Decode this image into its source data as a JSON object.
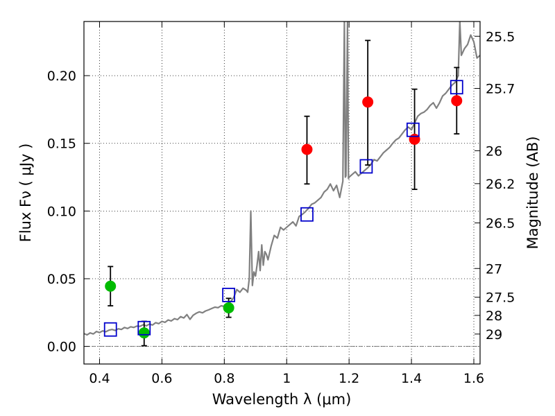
{
  "chart_data": {
    "type": "scatter",
    "title": "",
    "xlabel": "Wavelength  λ (μm)",
    "ylabel": "Flux  Fν  ( μJy )",
    "y2label": "Magnitude (AB)",
    "xlim": [
      0.35,
      1.62
    ],
    "ylim": [
      -0.013,
      0.24
    ],
    "grid": true,
    "legend": "none",
    "x_ticks": [
      {
        "value": 0.4,
        "label": "0.4"
      },
      {
        "value": 0.6,
        "label": "0.6"
      },
      {
        "value": 0.8,
        "label": "0.8"
      },
      {
        "value": 1.0,
        "label": "1"
      },
      {
        "value": 1.2,
        "label": "1.2"
      },
      {
        "value": 1.4,
        "label": "1.4"
      },
      {
        "value": 1.6,
        "label": "1.6"
      }
    ],
    "y_ticks": [
      {
        "value": 0.0,
        "label": "0.00"
      },
      {
        "value": 0.05,
        "label": "0.05"
      },
      {
        "value": 0.1,
        "label": "0.10"
      },
      {
        "value": 0.15,
        "label": "0.15"
      },
      {
        "value": 0.2,
        "label": "0.20"
      }
    ],
    "mag_ticks": [
      {
        "value": 25.5,
        "label": "25.5"
      },
      {
        "value": 25.7,
        "label": "25.7"
      },
      {
        "value": 26.0,
        "label": "26"
      },
      {
        "value": 26.2,
        "label": "26.2"
      },
      {
        "value": 26.5,
        "label": "26.5"
      },
      {
        "value": 27.0,
        "label": "27"
      },
      {
        "value": 27.5,
        "label": "27.5"
      },
      {
        "value": 28.0,
        "label": "28"
      },
      {
        "value": 29.0,
        "label": "29"
      }
    ],
    "model_spectrum": {
      "color": "#808080",
      "points": [
        [
          0.35,
          0.0095
        ],
        [
          0.36,
          0.0085
        ],
        [
          0.37,
          0.01
        ],
        [
          0.38,
          0.0092
        ],
        [
          0.39,
          0.011
        ],
        [
          0.4,
          0.0102
        ],
        [
          0.41,
          0.0115
        ],
        [
          0.42,
          0.0108
        ],
        [
          0.43,
          0.012
        ],
        [
          0.44,
          0.0125
        ],
        [
          0.45,
          0.0118
        ],
        [
          0.46,
          0.013
        ],
        [
          0.47,
          0.0125
        ],
        [
          0.48,
          0.014
        ],
        [
          0.49,
          0.0132
        ],
        [
          0.5,
          0.0145
        ],
        [
          0.51,
          0.014
        ],
        [
          0.52,
          0.015
        ],
        [
          0.53,
          0.0148
        ],
        [
          0.54,
          0.016
        ],
        [
          0.55,
          0.0152
        ],
        [
          0.56,
          0.0165
        ],
        [
          0.57,
          0.0158
        ],
        [
          0.58,
          0.0175
        ],
        [
          0.59,
          0.0168
        ],
        [
          0.6,
          0.0185
        ],
        [
          0.61,
          0.0178
        ],
        [
          0.62,
          0.0195
        ],
        [
          0.63,
          0.0188
        ],
        [
          0.64,
          0.0205
        ],
        [
          0.65,
          0.0198
        ],
        [
          0.66,
          0.022
        ],
        [
          0.67,
          0.021
        ],
        [
          0.68,
          0.0235
        ],
        [
          0.69,
          0.02
        ],
        [
          0.7,
          0.023
        ],
        [
          0.71,
          0.0245
        ],
        [
          0.72,
          0.0255
        ],
        [
          0.73,
          0.0248
        ],
        [
          0.74,
          0.0262
        ],
        [
          0.75,
          0.027
        ],
        [
          0.76,
          0.028
        ],
        [
          0.77,
          0.029
        ],
        [
          0.78,
          0.0286
        ],
        [
          0.79,
          0.03
        ],
        [
          0.8,
          0.0295
        ],
        [
          0.81,
          0.031
        ],
        [
          0.82,
          0.033
        ],
        [
          0.83,
          0.036
        ],
        [
          0.84,
          0.042
        ],
        [
          0.85,
          0.04
        ],
        [
          0.86,
          0.043
        ],
        [
          0.87,
          0.0415
        ],
        [
          0.875,
          0.04
        ],
        [
          0.88,
          0.05
        ],
        [
          0.885,
          0.1
        ],
        [
          0.89,
          0.045
        ],
        [
          0.895,
          0.055
        ],
        [
          0.9,
          0.052
        ],
        [
          0.905,
          0.06
        ],
        [
          0.91,
          0.07
        ],
        [
          0.915,
          0.056
        ],
        [
          0.92,
          0.075
        ],
        [
          0.925,
          0.06
        ],
        [
          0.93,
          0.07
        ],
        [
          0.935,
          0.068
        ],
        [
          0.94,
          0.064
        ],
        [
          0.95,
          0.074
        ],
        [
          0.96,
          0.082
        ],
        [
          0.97,
          0.08
        ],
        [
          0.98,
          0.088
        ],
        [
          0.99,
          0.086
        ],
        [
          1.0,
          0.088
        ],
        [
          1.01,
          0.09
        ],
        [
          1.02,
          0.092
        ],
        [
          1.03,
          0.089
        ],
        [
          1.04,
          0.096
        ],
        [
          1.05,
          0.0975
        ],
        [
          1.06,
          0.0995
        ],
        [
          1.07,
          0.102
        ],
        [
          1.08,
          0.105
        ],
        [
          1.09,
          0.106
        ],
        [
          1.1,
          0.108
        ],
        [
          1.11,
          0.11
        ],
        [
          1.12,
          0.114
        ],
        [
          1.13,
          0.116
        ],
        [
          1.14,
          0.12
        ],
        [
          1.15,
          0.115
        ],
        [
          1.16,
          0.119
        ],
        [
          1.17,
          0.11
        ],
        [
          1.18,
          0.122
        ],
        [
          1.185,
          0.24
        ],
        [
          1.188,
          0.125
        ],
        [
          1.19,
          0.126
        ],
        [
          1.195,
          0.24
        ],
        [
          1.198,
          0.124
        ],
        [
          1.2,
          0.125
        ],
        [
          1.21,
          0.127
        ],
        [
          1.22,
          0.129
        ],
        [
          1.23,
          0.126
        ],
        [
          1.24,
          0.128
        ],
        [
          1.25,
          0.13
        ],
        [
          1.26,
          0.132
        ],
        [
          1.27,
          0.1345
        ],
        [
          1.28,
          0.138
        ],
        [
          1.29,
          0.137
        ],
        [
          1.3,
          0.14
        ],
        [
          1.31,
          0.143
        ],
        [
          1.32,
          0.145
        ],
        [
          1.33,
          0.147
        ],
        [
          1.34,
          0.15
        ],
        [
          1.35,
          0.1525
        ],
        [
          1.36,
          0.154
        ],
        [
          1.37,
          0.157
        ],
        [
          1.38,
          0.16
        ],
        [
          1.39,
          0.162
        ],
        [
          1.4,
          0.16
        ],
        [
          1.41,
          0.165
        ],
        [
          1.42,
          0.17
        ],
        [
          1.43,
          0.172
        ],
        [
          1.44,
          0.173
        ],
        [
          1.45,
          0.175
        ],
        [
          1.46,
          0.178
        ],
        [
          1.47,
          0.18
        ],
        [
          1.48,
          0.176
        ],
        [
          1.49,
          0.18
        ],
        [
          1.5,
          0.185
        ],
        [
          1.51,
          0.187
        ],
        [
          1.52,
          0.19
        ],
        [
          1.53,
          0.193
        ],
        [
          1.54,
          0.195
        ],
        [
          1.55,
          0.2
        ],
        [
          1.555,
          0.24
        ],
        [
          1.56,
          0.215
        ],
        [
          1.57,
          0.22
        ],
        [
          1.58,
          0.223
        ],
        [
          1.59,
          0.23
        ],
        [
          1.6,
          0.225
        ],
        [
          1.61,
          0.213
        ],
        [
          1.62,
          0.215
        ]
      ]
    },
    "series": [
      {
        "kind": "detections_optical",
        "color": "#00bb00",
        "points": [
          {
            "x": 0.435,
            "y": 0.0445,
            "yerr_low": 0.03,
            "yerr_high": 0.059
          },
          {
            "x": 0.543,
            "y": 0.01,
            "yerr_low": 0.0005,
            "yerr_high": 0.0185
          },
          {
            "x": 0.814,
            "y": 0.0285,
            "yerr_low": 0.0215,
            "yerr_high": 0.0355
          }
        ]
      },
      {
        "kind": "detections_nir",
        "color": "#ff0000",
        "points": [
          {
            "x": 1.065,
            "y": 0.1455,
            "yerr_low": 0.12,
            "yerr_high": 0.17
          },
          {
            "x": 1.26,
            "y": 0.1805,
            "yerr_low": 0.134,
            "yerr_high": 0.226
          },
          {
            "x": 1.41,
            "y": 0.153,
            "yerr_low": 0.116,
            "yerr_high": 0.19
          },
          {
            "x": 1.545,
            "y": 0.1815,
            "yerr_low": 0.157,
            "yerr_high": 0.206
          }
        ]
      },
      {
        "kind": "model_photometry",
        "color": "#0000cc",
        "points": [
          {
            "x": 0.435,
            "y": 0.0125
          },
          {
            "x": 0.543,
            "y": 0.0135
          },
          {
            "x": 0.814,
            "y": 0.038
          },
          {
            "x": 1.065,
            "y": 0.0975
          },
          {
            "x": 1.255,
            "y": 0.133
          },
          {
            "x": 1.405,
            "y": 0.16
          },
          {
            "x": 1.545,
            "y": 0.1915
          }
        ]
      }
    ]
  }
}
